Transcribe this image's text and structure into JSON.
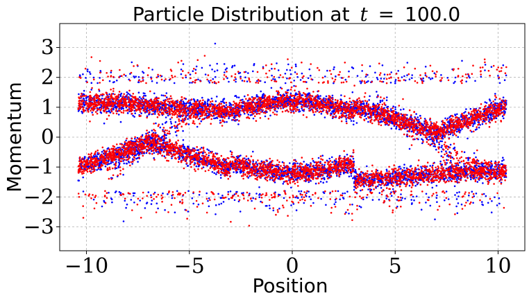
{
  "chart_data": {
    "type": "scatter",
    "title_prefix": "Particle Distribution at",
    "title_var": "t",
    "title_eq": "=",
    "title_value": "100.0",
    "xlabel": "Position",
    "ylabel": "Momentum",
    "xlim": [
      -11.3,
      11.3
    ],
    "ylim": [
      -3.8,
      3.8
    ],
    "xticks": [
      -10,
      -5,
      0,
      5,
      10
    ],
    "xtick_labels": [
      "−10",
      "−5",
      "0",
      "5",
      "10"
    ],
    "yticks": [
      -3,
      -2,
      -1,
      0,
      1,
      2,
      3
    ],
    "ytick_labels": [
      "−3",
      "−2",
      "−1",
      "0",
      "1",
      "2",
      "3"
    ],
    "grid": true,
    "domain": [
      -10.4,
      10.4
    ],
    "series": [
      {
        "color": "#0000ff",
        "seed": 7,
        "count": 5200
      },
      {
        "color": "#ff0000",
        "seed": 13,
        "count": 5600
      }
    ]
  }
}
